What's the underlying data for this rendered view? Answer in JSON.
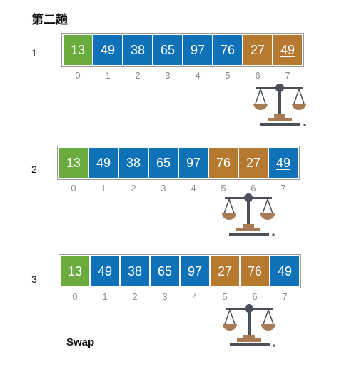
{
  "title": "第二趟",
  "swap_label": "Swap",
  "colors": {
    "green": "#6aab3e",
    "blue": "#0f72b8",
    "brown": "#b5792f",
    "index": "#8c8c8c",
    "scale_dark": "#4a4f59",
    "scale_bronze": "#a97b55"
  },
  "rows": [
    {
      "label": "1",
      "cells": [
        {
          "value": "13",
          "color": "green",
          "underline": false
        },
        {
          "value": "49",
          "color": "blue",
          "underline": false
        },
        {
          "value": "38",
          "color": "blue",
          "underline": false
        },
        {
          "value": "65",
          "color": "blue",
          "underline": false
        },
        {
          "value": "97",
          "color": "blue",
          "underline": false
        },
        {
          "value": "76",
          "color": "blue",
          "underline": false
        },
        {
          "value": "27",
          "color": "brown",
          "underline": false
        },
        {
          "value": "49",
          "color": "brown",
          "underline": true
        }
      ],
      "indices": [
        "0",
        "1",
        "2",
        "3",
        "4",
        "5",
        "6",
        "7"
      ],
      "compare": [
        6,
        7
      ]
    },
    {
      "label": "2",
      "cells": [
        {
          "value": "13",
          "color": "green",
          "underline": false
        },
        {
          "value": "49",
          "color": "blue",
          "underline": false
        },
        {
          "value": "38",
          "color": "blue",
          "underline": false
        },
        {
          "value": "65",
          "color": "blue",
          "underline": false
        },
        {
          "value": "97",
          "color": "blue",
          "underline": false
        },
        {
          "value": "76",
          "color": "brown",
          "underline": false
        },
        {
          "value": "27",
          "color": "brown",
          "underline": false
        },
        {
          "value": "49",
          "color": "blue",
          "underline": true
        }
      ],
      "indices": [
        "0",
        "1",
        "2",
        "3",
        "4",
        "5",
        "6",
        "7"
      ],
      "compare": [
        5,
        6
      ]
    },
    {
      "label": "3",
      "cells": [
        {
          "value": "13",
          "color": "green",
          "underline": false
        },
        {
          "value": "49",
          "color": "blue",
          "underline": false
        },
        {
          "value": "38",
          "color": "blue",
          "underline": false
        },
        {
          "value": "65",
          "color": "blue",
          "underline": false
        },
        {
          "value": "97",
          "color": "blue",
          "underline": false
        },
        {
          "value": "27",
          "color": "brown",
          "underline": false
        },
        {
          "value": "76",
          "color": "brown",
          "underline": false
        },
        {
          "value": "49",
          "color": "blue",
          "underline": true
        }
      ],
      "indices": [
        "0",
        "1",
        "2",
        "3",
        "4",
        "5",
        "6",
        "7"
      ],
      "compare": [
        5,
        6
      ]
    }
  ]
}
